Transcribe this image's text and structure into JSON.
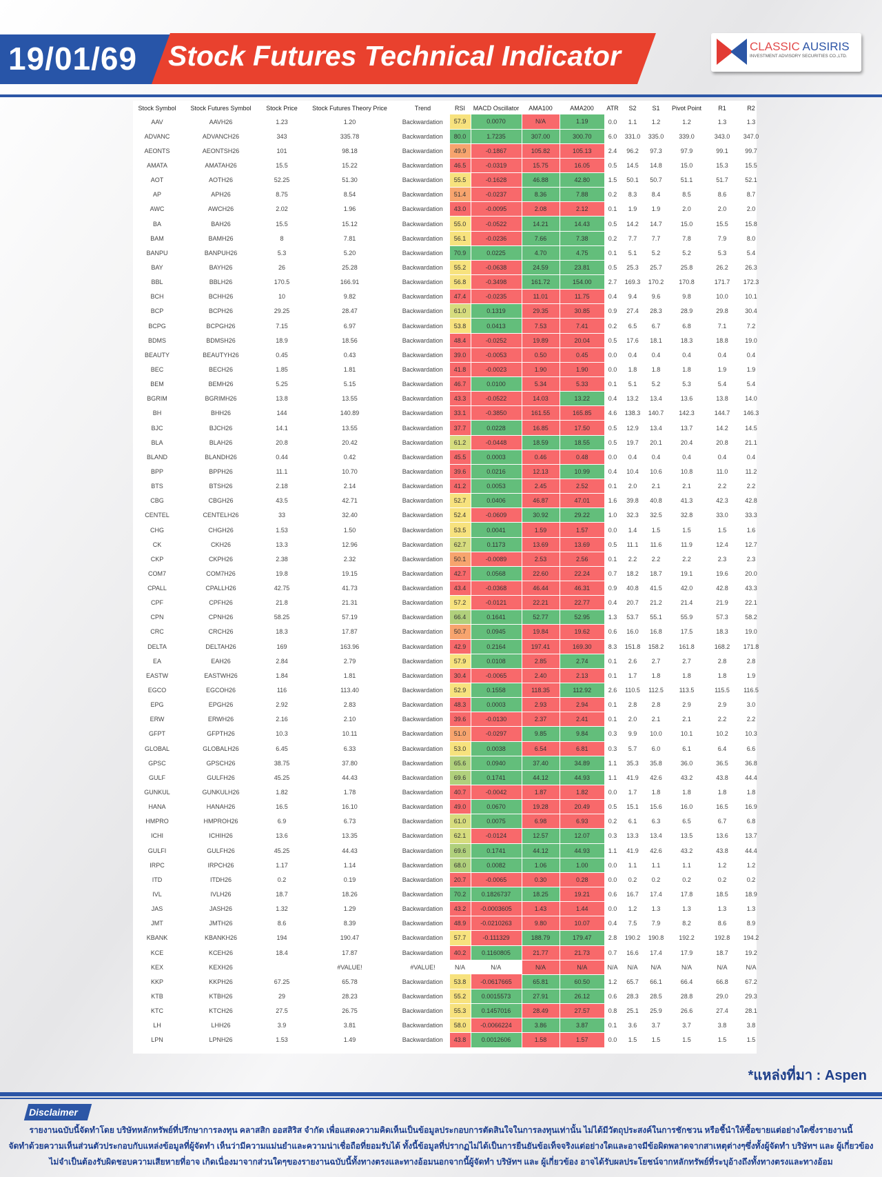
{
  "header": {
    "date": "19/01/69",
    "title": "Stock Futures Technical Indicator",
    "logo_line1a": "CLASSIC",
    "logo_line1b": "AUSIRIS",
    "logo_line2": "INVESTMENT ADVISORY SECURITIES CO.,LTD."
  },
  "colors": {
    "brand_blue": "#2c56a6",
    "brand_red": "#e9412e",
    "cell_green": "#63be7b",
    "cell_red": "#f8696b",
    "rsi_yellow": "#f7e27e",
    "rsi_orange": "#f7a46e",
    "rsi_yellowgreen": "#d6dc7e",
    "rsi_lightgreen": "#b0d07c"
  },
  "table": {
    "columns": [
      "Stock Symbol",
      "Stock Futures Symbol",
      "Stock Price",
      "Stock Futures Theory Price",
      "Trend",
      "RSI",
      "MACD Oscillator",
      "AMA100",
      "AMA200",
      "ATR",
      "S2",
      "S1",
      "Pivot Point",
      "R1",
      "R2"
    ],
    "rows": [
      [
        "AAV",
        "AAVH26",
        "1.23",
        "1.20",
        "Backwardation",
        "57.9",
        "0.0070",
        "N/A",
        "1.19",
        "0.0",
        "1.1",
        "1.2",
        "1.2",
        "1.3",
        "1.3"
      ],
      [
        "ADVANC",
        "ADVANCH26",
        "343",
        "335.78",
        "Backwardation",
        "80.0",
        "1.7235",
        "307.00",
        "300.70",
        "6.0",
        "331.0",
        "335.0",
        "339.0",
        "343.0",
        "347.0"
      ],
      [
        "AEONTS",
        "AEONTSH26",
        "101",
        "98.18",
        "Backwardation",
        "49.9",
        "-0.1867",
        "105.82",
        "105.13",
        "2.4",
        "96.2",
        "97.3",
        "97.9",
        "99.1",
        "99.7"
      ],
      [
        "AMATA",
        "AMATAH26",
        "15.5",
        "15.22",
        "Backwardation",
        "46.5",
        "-0.0319",
        "15.75",
        "16.05",
        "0.5",
        "14.5",
        "14.8",
        "15.0",
        "15.3",
        "15.5"
      ],
      [
        "AOT",
        "AOTH26",
        "52.25",
        "51.30",
        "Backwardation",
        "55.5",
        "-0.1628",
        "46.88",
        "42.80",
        "1.5",
        "50.1",
        "50.7",
        "51.1",
        "51.7",
        "52.1"
      ],
      [
        "AP",
        "APH26",
        "8.75",
        "8.54",
        "Backwardation",
        "51.4",
        "-0.0237",
        "8.36",
        "7.88",
        "0.2",
        "8.3",
        "8.4",
        "8.5",
        "8.6",
        "8.7"
      ],
      [
        "AWC",
        "AWCH26",
        "2.02",
        "1.96",
        "Backwardation",
        "43.0",
        "-0.0095",
        "2.08",
        "2.12",
        "0.1",
        "1.9",
        "1.9",
        "2.0",
        "2.0",
        "2.0"
      ],
      [
        "BA",
        "BAH26",
        "15.5",
        "15.12",
        "Backwardation",
        "55.0",
        "-0.0522",
        "14.21",
        "14.43",
        "0.5",
        "14.2",
        "14.7",
        "15.0",
        "15.5",
        "15.8"
      ],
      [
        "BAM",
        "BAMH26",
        "8",
        "7.81",
        "Backwardation",
        "56.1",
        "-0.0236",
        "7.66",
        "7.38",
        "0.2",
        "7.7",
        "7.7",
        "7.8",
        "7.9",
        "8.0"
      ],
      [
        "BANPU",
        "BANPUH26",
        "5.3",
        "5.20",
        "Backwardation",
        "70.9",
        "0.0225",
        "4.70",
        "4.75",
        "0.1",
        "5.1",
        "5.2",
        "5.2",
        "5.3",
        "5.4"
      ],
      [
        "BAY",
        "BAYH26",
        "26",
        "25.28",
        "Backwardation",
        "55.2",
        "-0.0638",
        "24.59",
        "23.81",
        "0.5",
        "25.3",
        "25.7",
        "25.8",
        "26.2",
        "26.3"
      ],
      [
        "BBL",
        "BBLH26",
        "170.5",
        "166.91",
        "Backwardation",
        "56.8",
        "-0.3498",
        "161.72",
        "154.00",
        "2.7",
        "169.3",
        "170.2",
        "170.8",
        "171.7",
        "172.3"
      ],
      [
        "BCH",
        "BCHH26",
        "10",
        "9.82",
        "Backwardation",
        "47.4",
        "-0.0235",
        "11.01",
        "11.75",
        "0.4",
        "9.4",
        "9.6",
        "9.8",
        "10.0",
        "10.1"
      ],
      [
        "BCP",
        "BCPH26",
        "29.25",
        "28.47",
        "Backwardation",
        "61.0",
        "0.1319",
        "29.35",
        "30.85",
        "0.9",
        "27.4",
        "28.3",
        "28.9",
        "29.8",
        "30.4"
      ],
      [
        "BCPG",
        "BCPGH26",
        "7.15",
        "6.97",
        "Backwardation",
        "53.8",
        "0.0413",
        "7.53",
        "7.41",
        "0.2",
        "6.5",
        "6.7",
        "6.8",
        "7.1",
        "7.2"
      ],
      [
        "BDMS",
        "BDMSH26",
        "18.9",
        "18.56",
        "Backwardation",
        "48.4",
        "-0.0252",
        "19.89",
        "20.04",
        "0.5",
        "17.6",
        "18.1",
        "18.3",
        "18.8",
        "19.0"
      ],
      [
        "BEAUTY",
        "BEAUTYH26",
        "0.45",
        "0.43",
        "Backwardation",
        "39.0",
        "-0.0053",
        "0.50",
        "0.45",
        "0.0",
        "0.4",
        "0.4",
        "0.4",
        "0.4",
        "0.4"
      ],
      [
        "BEC",
        "BECH26",
        "1.85",
        "1.81",
        "Backwardation",
        "41.8",
        "-0.0023",
        "1.90",
        "1.90",
        "0.0",
        "1.8",
        "1.8",
        "1.8",
        "1.9",
        "1.9"
      ],
      [
        "BEM",
        "BEMH26",
        "5.25",
        "5.15",
        "Backwardation",
        "46.7",
        "0.0100",
        "5.34",
        "5.33",
        "0.1",
        "5.1",
        "5.2",
        "5.3",
        "5.4",
        "5.4"
      ],
      [
        "BGRIM",
        "BGRIMH26",
        "13.8",
        "13.55",
        "Backwardation",
        "43.3",
        "-0.0522",
        "14.03",
        "13.22",
        "0.4",
        "13.2",
        "13.4",
        "13.6",
        "13.8",
        "14.0"
      ],
      [
        "BH",
        "BHH26",
        "144",
        "140.89",
        "Backwardation",
        "33.1",
        "-0.3850",
        "161.55",
        "165.85",
        "4.6",
        "138.3",
        "140.7",
        "142.3",
        "144.7",
        "146.3"
      ],
      [
        "BJC",
        "BJCH26",
        "14.1",
        "13.55",
        "Backwardation",
        "37.7",
        "0.0228",
        "16.85",
        "17.50",
        "0.5",
        "12.9",
        "13.4",
        "13.7",
        "14.2",
        "14.5"
      ],
      [
        "BLA",
        "BLAH26",
        "20.8",
        "20.42",
        "Backwardation",
        "61.2",
        "-0.0448",
        "18.59",
        "18.55",
        "0.5",
        "19.7",
        "20.1",
        "20.4",
        "20.8",
        "21.1"
      ],
      [
        "BLAND",
        "BLANDH26",
        "0.44",
        "0.42",
        "Backwardation",
        "45.5",
        "0.0003",
        "0.46",
        "0.48",
        "0.0",
        "0.4",
        "0.4",
        "0.4",
        "0.4",
        "0.4"
      ],
      [
        "BPP",
        "BPPH26",
        "11.1",
        "10.70",
        "Backwardation",
        "39.6",
        "0.0216",
        "12.13",
        "10.99",
        "0.4",
        "10.4",
        "10.6",
        "10.8",
        "11.0",
        "11.2"
      ],
      [
        "BTS",
        "BTSH26",
        "2.18",
        "2.14",
        "Backwardation",
        "41.2",
        "0.0053",
        "2.45",
        "2.52",
        "0.1",
        "2.0",
        "2.1",
        "2.1",
        "2.2",
        "2.2"
      ],
      [
        "CBG",
        "CBGH26",
        "43.5",
        "42.71",
        "Backwardation",
        "52.7",
        "0.0406",
        "46.87",
        "47.01",
        "1.6",
        "39.8",
        "40.8",
        "41.3",
        "42.3",
        "42.8"
      ],
      [
        "CENTEL",
        "CENTELH26",
        "33",
        "32.40",
        "Backwardation",
        "52.4",
        "-0.0609",
        "30.92",
        "29.22",
        "1.0",
        "32.3",
        "32.5",
        "32.8",
        "33.0",
        "33.3"
      ],
      [
        "CHG",
        "CHGH26",
        "1.53",
        "1.50",
        "Backwardation",
        "53.5",
        "0.0041",
        "1.59",
        "1.57",
        "0.0",
        "1.4",
        "1.5",
        "1.5",
        "1.5",
        "1.6"
      ],
      [
        "CK",
        "CKH26",
        "13.3",
        "12.96",
        "Backwardation",
        "62.7",
        "0.1173",
        "13.69",
        "13.69",
        "0.5",
        "11.1",
        "11.6",
        "11.9",
        "12.4",
        "12.7"
      ],
      [
        "CKP",
        "CKPH26",
        "2.38",
        "2.32",
        "Backwardation",
        "50.1",
        "-0.0089",
        "2.53",
        "2.56",
        "0.1",
        "2.2",
        "2.2",
        "2.2",
        "2.3",
        "2.3"
      ],
      [
        "COM7",
        "COM7H26",
        "19.8",
        "19.15",
        "Backwardation",
        "42.7",
        "0.0568",
        "22.60",
        "22.24",
        "0.7",
        "18.2",
        "18.7",
        "19.1",
        "19.6",
        "20.0"
      ],
      [
        "CPALL",
        "CPALLH26",
        "42.75",
        "41.73",
        "Backwardation",
        "43.4",
        "-0.0368",
        "46.44",
        "46.31",
        "0.9",
        "40.8",
        "41.5",
        "42.0",
        "42.8",
        "43.3"
      ],
      [
        "CPF",
        "CPFH26",
        "21.8",
        "21.31",
        "Backwardation",
        "57.2",
        "-0.0121",
        "22.21",
        "22.77",
        "0.4",
        "20.7",
        "21.2",
        "21.4",
        "21.9",
        "22.1"
      ],
      [
        "CPN",
        "CPNH26",
        "58.25",
        "57.19",
        "Backwardation",
        "66.4",
        "0.1641",
        "52.77",
        "52.95",
        "1.3",
        "53.7",
        "55.1",
        "55.9",
        "57.3",
        "58.2"
      ],
      [
        "CRC",
        "CRCH26",
        "18.3",
        "17.87",
        "Backwardation",
        "50.7",
        "0.0945",
        "19.84",
        "19.62",
        "0.6",
        "16.0",
        "16.8",
        "17.5",
        "18.3",
        "19.0"
      ],
      [
        "DELTA",
        "DELTAH26",
        "169",
        "163.96",
        "Backwardation",
        "42.9",
        "0.2164",
        "197.41",
        "169.30",
        "8.3",
        "151.8",
        "158.2",
        "161.8",
        "168.2",
        "171.8"
      ],
      [
        "EA",
        "EAH26",
        "2.84",
        "2.79",
        "Backwardation",
        "57.9",
        "0.0108",
        "2.85",
        "2.74",
        "0.1",
        "2.6",
        "2.7",
        "2.7",
        "2.8",
        "2.8"
      ],
      [
        "EASTW",
        "EASTWH26",
        "1.84",
        "1.81",
        "Backwardation",
        "30.4",
        "-0.0065",
        "2.40",
        "2.13",
        "0.1",
        "1.7",
        "1.8",
        "1.8",
        "1.8",
        "1.9"
      ],
      [
        "EGCO",
        "EGCOH26",
        "116",
        "113.40",
        "Backwardation",
        "52.9",
        "0.1558",
        "118.35",
        "112.92",
        "2.6",
        "110.5",
        "112.5",
        "113.5",
        "115.5",
        "116.5"
      ],
      [
        "EPG",
        "EPGH26",
        "2.92",
        "2.83",
        "Backwardation",
        "48.3",
        "0.0003",
        "2.93",
        "2.94",
        "0.1",
        "2.8",
        "2.8",
        "2.9",
        "2.9",
        "3.0"
      ],
      [
        "ERW",
        "ERWH26",
        "2.16",
        "2.10",
        "Backwardation",
        "39.6",
        "-0.0130",
        "2.37",
        "2.41",
        "0.1",
        "2.0",
        "2.1",
        "2.1",
        "2.2",
        "2.2"
      ],
      [
        "GFPT",
        "GFPTH26",
        "10.3",
        "10.11",
        "Backwardation",
        "51.0",
        "-0.0297",
        "9.85",
        "9.84",
        "0.3",
        "9.9",
        "10.0",
        "10.1",
        "10.2",
        "10.3"
      ],
      [
        "GLOBAL",
        "GLOBALH26",
        "6.45",
        "6.33",
        "Backwardation",
        "53.0",
        "0.0038",
        "6.54",
        "6.81",
        "0.3",
        "5.7",
        "6.0",
        "6.1",
        "6.4",
        "6.6"
      ],
      [
        "GPSC",
        "GPSCH26",
        "38.75",
        "37.80",
        "Backwardation",
        "65.6",
        "0.0940",
        "37.40",
        "34.89",
        "1.1",
        "35.3",
        "35.8",
        "36.0",
        "36.5",
        "36.8"
      ],
      [
        "GULF",
        "GULFH26",
        "45.25",
        "44.43",
        "Backwardation",
        "69.6",
        "0.1741",
        "44.12",
        "44.93",
        "1.1",
        "41.9",
        "42.6",
        "43.2",
        "43.8",
        "44.4"
      ],
      [
        "GUNKUL",
        "GUNKULH26",
        "1.82",
        "1.78",
        "Backwardation",
        "40.7",
        "-0.0042",
        "1.87",
        "1.82",
        "0.0",
        "1.7",
        "1.8",
        "1.8",
        "1.8",
        "1.8"
      ],
      [
        "HANA",
        "HANAH26",
        "16.5",
        "16.10",
        "Backwardation",
        "49.0",
        "0.0670",
        "19.28",
        "20.49",
        "0.5",
        "15.1",
        "15.6",
        "16.0",
        "16.5",
        "16.9"
      ],
      [
        "HMPRO",
        "HMPROH26",
        "6.9",
        "6.73",
        "Backwardation",
        "61.0",
        "0.0075",
        "6.98",
        "6.93",
        "0.2",
        "6.1",
        "6.3",
        "6.5",
        "6.7",
        "6.8"
      ],
      [
        "ICHI",
        "ICHIH26",
        "13.6",
        "13.35",
        "Backwardation",
        "62.1",
        "-0.0124",
        "12.57",
        "12.07",
        "0.3",
        "13.3",
        "13.4",
        "13.5",
        "13.6",
        "13.7"
      ],
      [
        "GULFI",
        "GULFH26",
        "45.25",
        "44.43",
        "Backwardation",
        "69.6",
        "0.1741",
        "44.12",
        "44.93",
        "1.1",
        "41.9",
        "42.6",
        "43.2",
        "43.8",
        "44.4"
      ],
      [
        "IRPC",
        "IRPCH26",
        "1.17",
        "1.14",
        "Backwardation",
        "68.0",
        "0.0082",
        "1.06",
        "1.00",
        "0.0",
        "1.1",
        "1.1",
        "1.1",
        "1.2",
        "1.2"
      ],
      [
        "ITD",
        "ITDH26",
        "0.2",
        "0.19",
        "Backwardation",
        "20.7",
        "-0.0065",
        "0.30",
        "0.28",
        "0.0",
        "0.2",
        "0.2",
        "0.2",
        "0.2",
        "0.2"
      ],
      [
        "IVL",
        "IVLH26",
        "18.7",
        "18.26",
        "Backwardation",
        "70.2",
        "0.1826737",
        "18.25",
        "19.21",
        "0.6",
        "16.7",
        "17.4",
        "17.8",
        "18.5",
        "18.9"
      ],
      [
        "JAS",
        "JASH26",
        "1.32",
        "1.29",
        "Backwardation",
        "43.2",
        "-0.0003605",
        "1.43",
        "1.44",
        "0.0",
        "1.2",
        "1.3",
        "1.3",
        "1.3",
        "1.3"
      ],
      [
        "JMT",
        "JMTH26",
        "8.6",
        "8.39",
        "Backwardation",
        "48.9",
        "-0.0210263",
        "9.80",
        "10.07",
        "0.4",
        "7.5",
        "7.9",
        "8.2",
        "8.6",
        "8.9"
      ],
      [
        "KBANK",
        "KBANKH26",
        "194",
        "190.47",
        "Backwardation",
        "57.7",
        "-0.111329",
        "188.79",
        "179.47",
        "2.8",
        "190.2",
        "190.8",
        "192.2",
        "192.8",
        "194.2"
      ],
      [
        "KCE",
        "KCEH26",
        "18.4",
        "17.87",
        "Backwardation",
        "40.2",
        "0.1160805",
        "21.77",
        "21.73",
        "0.7",
        "16.6",
        "17.4",
        "17.9",
        "18.7",
        "19.2"
      ],
      [
        "KEX",
        "KEXH26",
        "",
        "#VALUE!",
        "#VALUE!",
        "N/A",
        "N/A",
        "N/A",
        "N/A",
        "N/A",
        "N/A",
        "N/A",
        "N/A",
        "N/A",
        "N/A"
      ],
      [
        "KKP",
        "KKPH26",
        "67.25",
        "65.78",
        "Backwardation",
        "53.8",
        "-0.0617665",
        "65.81",
        "60.50",
        "1.2",
        "65.7",
        "66.1",
        "66.4",
        "66.8",
        "67.2"
      ],
      [
        "KTB",
        "KTBH26",
        "29",
        "28.23",
        "Backwardation",
        "55.2",
        "0.0015573",
        "27.91",
        "26.12",
        "0.6",
        "28.3",
        "28.5",
        "28.8",
        "29.0",
        "29.3"
      ],
      [
        "KTC",
        "KTCH26",
        "27.5",
        "26.75",
        "Backwardation",
        "55.3",
        "0.1457016",
        "28.49",
        "27.57",
        "0.8",
        "25.1",
        "25.9",
        "26.6",
        "27.4",
        "28.1"
      ],
      [
        "LH",
        "LHH26",
        "3.9",
        "3.81",
        "Backwardation",
        "58.0",
        "-0.0066224",
        "3.86",
        "3.87",
        "0.1",
        "3.6",
        "3.7",
        "3.7",
        "3.8",
        "3.8"
      ],
      [
        "LPN",
        "LPNH26",
        "1.53",
        "1.49",
        "Backwardation",
        "43.8",
        "0.0012606",
        "1.58",
        "1.57",
        "0.0",
        "1.5",
        "1.5",
        "1.5",
        "1.5",
        "1.5"
      ]
    ]
  },
  "footer": {
    "source": "*แหล่งที่มา : Aspen",
    "disclaimer_label": "Disclaimer",
    "disclaimer_lines": [
      "รายงานฉบับนี้จัดทำโดย บริษัทหลักทรัพย์ที่ปรึกษาการลงทุน คลาสสิก ออสสิริส จำกัด  เพื่อแสดงความคิดเห็นเป็นข้อมูลประกอบการตัดสินใจในการลงทุนเท่านั้น ไม่ได้มีวัตถุประสงค์ในการชักชวน หรือชี้นำให้ซื้อขายแต่อย่างใดซึ่งรายงานนี้",
      "จัดทำด้วยความเห็นส่วนตัวประกอบกับแหล่งข้อมูลที่ผู้จัดทำ เห็นว่ามีความแม่นยำและความน่าเชื่อถือที่ยอมรับได้ ทั้งนี้ข้อมูลที่ปรากฏไม่ได้เป็นการยืนยันข้อเท็จจริงแต่อย่างใดและอาจมีข้อผิดพลาดจากสาเหตุต่างๆซึ่งทั้งผู้จัดทำ  บริษัทฯ  และ  ผู้เกี่ยวข้อง",
      "ไม่จำเป็นต้องรับผิดชอบความเสียหายที่อาจ เกิดเนื่องมาจากส่วนใดๆของรายงานฉบับนี้ทั้งทางตรงและทางอ้อมนอกจากนี้ผู้จัดทำ บริษัทฯ และ ผู้เกี่ยวข้อง  อาจได้รับผลประโยชน์จากหลักทรัพย์ที่ระบุอ้างถึงทั้งทางตรงและทางอ้อม"
    ]
  }
}
